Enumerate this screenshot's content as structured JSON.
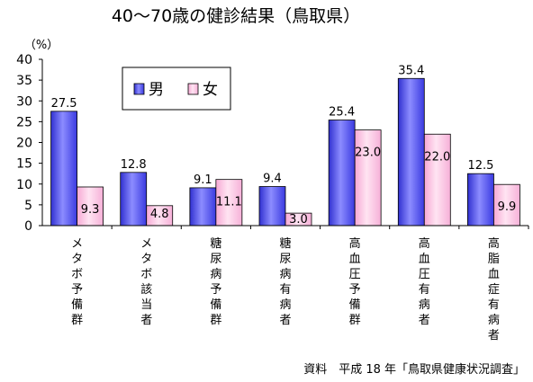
{
  "chart_data": {
    "type": "bar",
    "title": "40～70歳の健診結果（鳥取県）",
    "ylabel": "（%）",
    "ylim": [
      0,
      40
    ],
    "yticks": [
      0,
      5,
      10,
      15,
      20,
      25,
      30,
      35,
      40
    ],
    "categories": [
      "メタボ予備群",
      "メタボ該当者",
      "糖尿病予備群",
      "糖尿病有病者",
      "高血圧予備群",
      "高血圧有病者",
      "高脂血症有病者"
    ],
    "series": [
      {
        "name": "男",
        "color": "#5b5bff",
        "values": [
          27.5,
          12.8,
          9.1,
          9.4,
          25.4,
          35.4,
          12.5
        ],
        "labels": [
          "27.5",
          "12.8",
          "9.1",
          "9.4",
          "25.4",
          "35.4",
          "12.5"
        ]
      },
      {
        "name": "女",
        "color": "#ffc0e0",
        "values": [
          9.3,
          4.8,
          11.1,
          3.0,
          23.0,
          22.0,
          9.9
        ],
        "labels": [
          "9.3",
          "4.8",
          "11.1",
          "3.0",
          "23.0",
          "22.0",
          "9.9"
        ]
      }
    ],
    "grid": false,
    "legend_position": "top-left"
  },
  "source": "資料　平成 18 年「鳥取県健康状況調査」"
}
